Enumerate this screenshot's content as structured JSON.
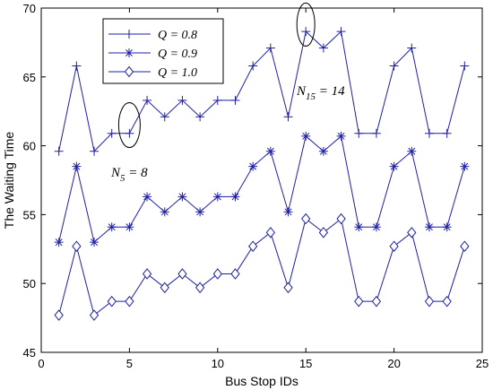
{
  "chart_data": {
    "type": "line",
    "xlabel": "Bus Stop IDs",
    "ylabel": "The Waiting Time",
    "xlim": [
      0,
      25
    ],
    "ylim": [
      45,
      70
    ],
    "xticks": [
      "0",
      "5",
      "10",
      "15",
      "20",
      "25"
    ],
    "yticks": [
      "45",
      "50",
      "55",
      "60",
      "65",
      "70"
    ],
    "grid": false,
    "legend_position": "top-left",
    "line_color": "#1f1fa8",
    "x": [
      1,
      2,
      3,
      4,
      5,
      6,
      7,
      8,
      9,
      10,
      11,
      12,
      13,
      14,
      15,
      16,
      17,
      18,
      19,
      20,
      21,
      22,
      23,
      24
    ],
    "series": [
      {
        "name": "Q = 0.8",
        "marker": "plus",
        "values": [
          59.6,
          65.8,
          59.6,
          60.9,
          60.9,
          63.3,
          62.1,
          63.3,
          62.1,
          63.3,
          63.3,
          65.8,
          67.1,
          62.1,
          68.3,
          67.1,
          68.3,
          60.9,
          60.9,
          65.8,
          67.1,
          60.9,
          60.9,
          65.8
        ]
      },
      {
        "name": "Q = 0.9",
        "marker": "star",
        "values": [
          53.0,
          58.5,
          53.0,
          54.1,
          54.1,
          56.3,
          55.2,
          56.3,
          55.2,
          56.3,
          56.3,
          58.5,
          59.6,
          55.2,
          60.7,
          59.6,
          60.7,
          54.1,
          54.1,
          58.5,
          59.6,
          54.1,
          54.1,
          58.5
        ]
      },
      {
        "name": "Q = 1.0",
        "marker": "diamond",
        "values": [
          47.7,
          52.7,
          47.7,
          48.7,
          48.7,
          50.7,
          49.7,
          50.7,
          49.7,
          50.7,
          50.7,
          52.7,
          53.7,
          49.7,
          54.7,
          53.7,
          54.7,
          48.7,
          48.7,
          52.7,
          53.7,
          48.7,
          48.7,
          52.7
        ]
      }
    ],
    "annotations": [
      {
        "text_main": "N",
        "text_sub": "5",
        "text_rest": " = 8",
        "ellipse_center": [
          5,
          61.5
        ]
      },
      {
        "text_main": "N",
        "text_sub": "15",
        "text_rest": " = 14",
        "ellipse_center": [
          15,
          68.8
        ]
      }
    ]
  }
}
